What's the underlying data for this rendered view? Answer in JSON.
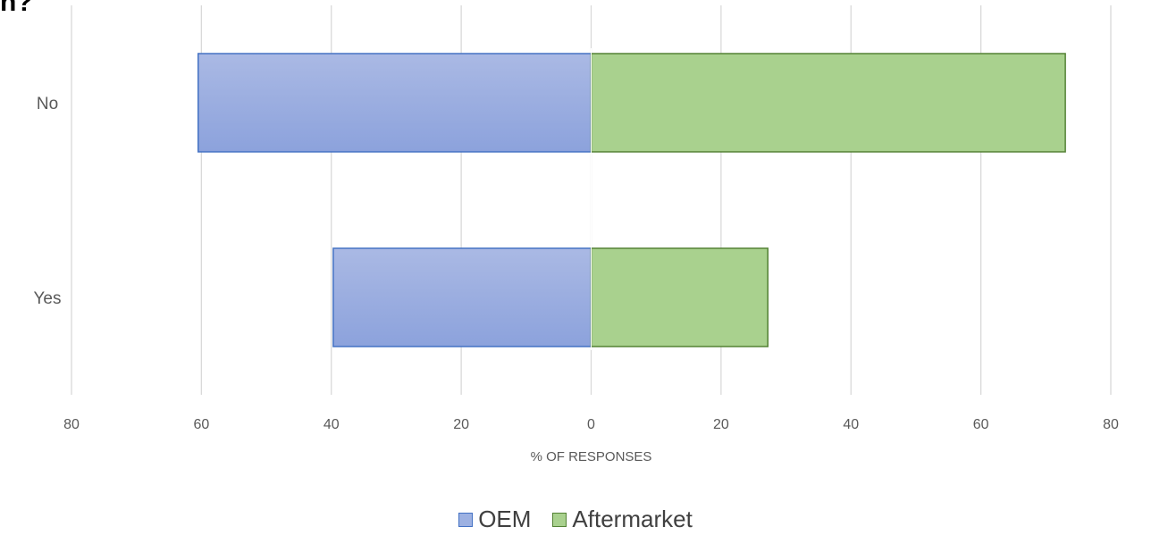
{
  "title_fragment": "n?",
  "chart_data": {
    "type": "bar",
    "orientation": "horizontal",
    "diverging": true,
    "categories": [
      "No",
      "Yes"
    ],
    "series": [
      {
        "name": "OEM",
        "values": [
          60.5,
          39.7
        ],
        "color": "#8faadc",
        "border": "#4472c4",
        "side": "left"
      },
      {
        "name": "Aftermarket",
        "values": [
          73,
          27.2
        ],
        "color": "#a9d18e",
        "border": "#548235",
        "side": "right"
      }
    ],
    "xlabel": "% OF RESPONSES",
    "xlim": [
      -80,
      80
    ],
    "xticks": [
      -80,
      -60,
      -40,
      -20,
      0,
      20,
      40,
      60,
      80
    ],
    "xtick_labels": [
      "80",
      "60",
      "40",
      "20",
      "0",
      "20",
      "40",
      "60",
      "80"
    ],
    "grid": "vertical",
    "legend_position": "bottom"
  }
}
